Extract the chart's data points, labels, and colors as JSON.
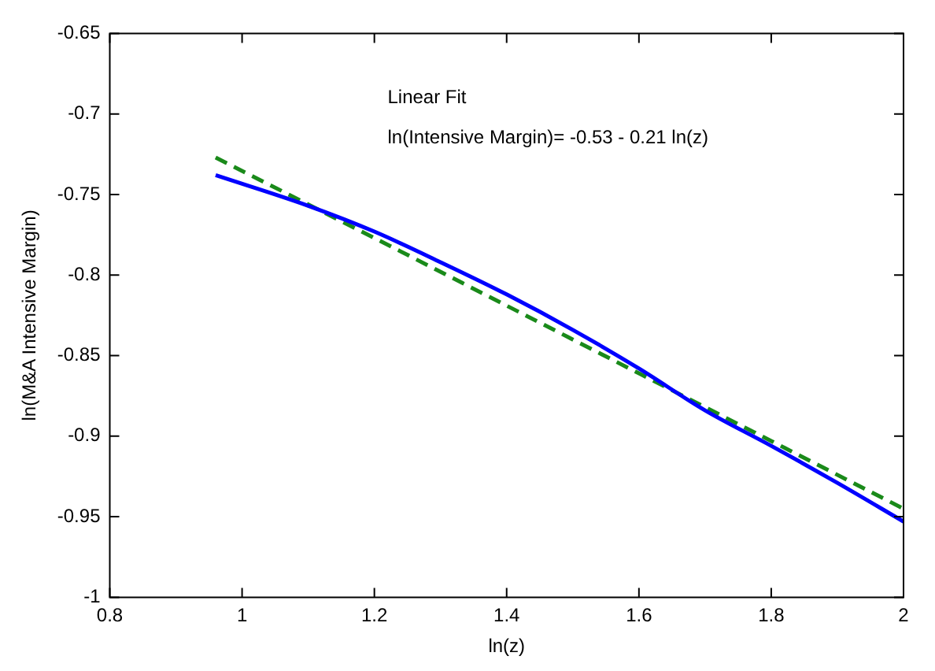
{
  "chart_data": {
    "type": "line",
    "xlabel": "ln(z)",
    "ylabel": "ln(M&A Intensive Margin)",
    "annotations": [
      "Linear Fit",
      "ln(Intensive Margin)= -0.53 - 0.21 ln(z)"
    ],
    "xlim": [
      0.8,
      2
    ],
    "xticks": [
      0.8,
      1,
      1.2,
      1.4,
      1.6,
      1.8,
      2
    ],
    "ylim": [
      -1,
      -0.65
    ],
    "yticks": [
      -1,
      -0.95,
      -0.9,
      -0.85,
      -0.8,
      -0.75,
      -0.7,
      -0.65
    ],
    "grid": false,
    "legend": false,
    "marker": "none",
    "series": [
      {
        "color": "#0000ff",
        "line_style": "solid",
        "x": [
          0.96,
          1.1,
          1.2,
          1.3,
          1.4,
          1.5,
          1.6,
          1.7,
          1.8,
          1.9,
          2.0
        ],
        "values": [
          -0.738,
          -0.757,
          -0.773,
          -0.792,
          -0.812,
          -0.834,
          -0.858,
          -0.884,
          -0.906,
          -0.929,
          -0.953
        ]
      },
      {
        "color": "#1a8a1a",
        "line_style": "dashed",
        "x": [
          0.96,
          1.2,
          1.4,
          1.6,
          1.8,
          2.0
        ],
        "values": [
          -0.727,
          -0.777,
          -0.819,
          -0.861,
          -0.903,
          -0.945
        ]
      }
    ]
  }
}
